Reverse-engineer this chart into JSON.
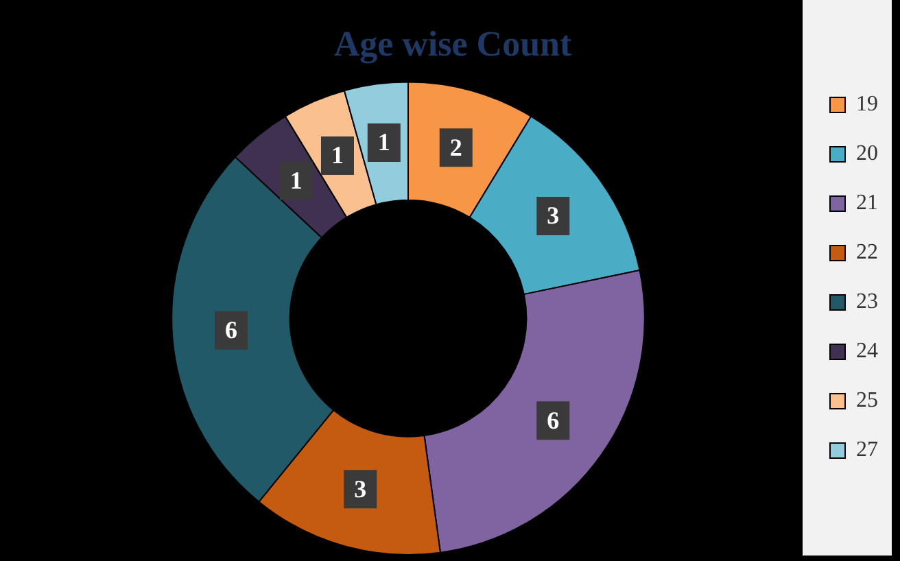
{
  "chart_data": {
    "type": "donut",
    "title": "Age wise Count",
    "categories": [
      "19",
      "20",
      "21",
      "22",
      "23",
      "24",
      "25",
      "27"
    ],
    "values": [
      2,
      3,
      6,
      3,
      6,
      1,
      1,
      1
    ],
    "colors": [
      "#f79646",
      "#4bacc6",
      "#8064a2",
      "#c55a11",
      "#215968",
      "#403152",
      "#fac090",
      "#93cddd"
    ],
    "data_labels": true,
    "legend": "right"
  }
}
